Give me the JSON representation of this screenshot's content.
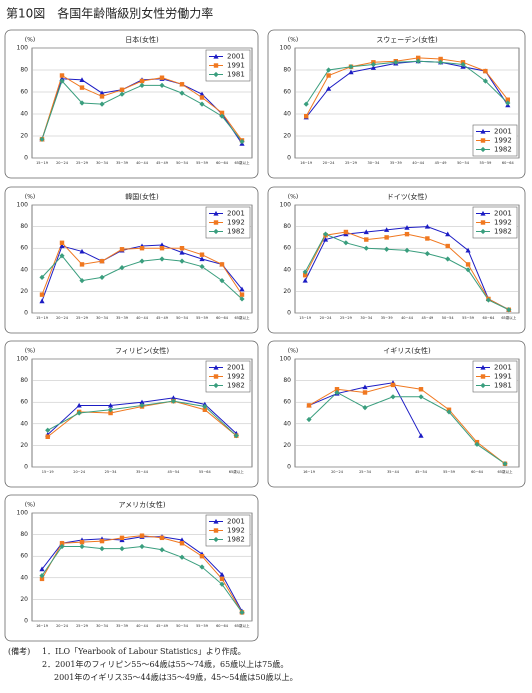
{
  "title": "第10図　各国年齢階級別女性労働力率",
  "chart_data": [
    {
      "type": "line",
      "title": "日本(女性)",
      "ylabel": "(%)",
      "legend": "upper right",
      "categories": [
        "15~19",
        "20~24",
        "25~29",
        "30~34",
        "35~39",
        "40~44",
        "45~49",
        "50~54",
        "55~59",
        "60~64",
        "65歳以上"
      ],
      "ylim": [
        0,
        100
      ],
      "yticks": [
        0,
        20,
        40,
        60,
        80,
        100
      ],
      "grid": true,
      "series": [
        {
          "name": "2001",
          "color": "#1c1cc4",
          "marker": "triangle",
          "values": [
            17,
            72,
            71,
            59,
            62,
            71,
            72,
            67,
            58,
            40,
            13
          ]
        },
        {
          "name": "1991",
          "color": "#f07820",
          "marker": "square",
          "values": [
            17,
            75,
            64,
            56,
            62,
            70,
            73,
            67,
            55,
            41,
            16
          ]
        },
        {
          "name": "1981",
          "color": "#3a9e7e",
          "marker": "diamond",
          "values": [
            17,
            70,
            50,
            49,
            58,
            66,
            66,
            59,
            49,
            38,
            15
          ]
        }
      ]
    },
    {
      "type": "line",
      "title": "スウェーデン(女性)",
      "ylabel": "(%)",
      "legend": "lower right",
      "categories": [
        "16~19",
        "20~24",
        "25~29",
        "30~34",
        "35~39",
        "40~44",
        "45~49",
        "50~54",
        "55~59",
        "60~64"
      ],
      "ylim": [
        0,
        100
      ],
      "yticks": [
        0,
        20,
        40,
        60,
        80,
        100
      ],
      "grid": true,
      "series": [
        {
          "name": "2001",
          "color": "#1c1cc4",
          "marker": "triangle",
          "values": [
            37,
            63,
            78,
            82,
            86,
            88,
            87,
            83,
            79,
            48
          ]
        },
        {
          "name": "1992",
          "color": "#f07820",
          "marker": "square",
          "values": [
            38,
            75,
            83,
            87,
            88,
            91,
            90,
            87,
            79,
            53
          ]
        },
        {
          "name": "1982",
          "color": "#3a9e7e",
          "marker": "diamond",
          "values": [
            49,
            80,
            83,
            85,
            87,
            88,
            87,
            85,
            70,
            50
          ]
        }
      ]
    },
    {
      "type": "line",
      "title": "韓国(女性)",
      "ylabel": "(%)",
      "legend": "upper right",
      "categories": [
        "15~19",
        "20~24",
        "25~29",
        "30~34",
        "35~39",
        "40~44",
        "45~49",
        "50~54",
        "55~59",
        "60~64",
        "65歳以上"
      ],
      "ylim": [
        0,
        100
      ],
      "yticks": [
        0,
        20,
        40,
        60,
        80,
        100
      ],
      "grid": true,
      "series": [
        {
          "name": "2001",
          "color": "#1c1cc4",
          "marker": "triangle",
          "values": [
            11,
            62,
            57,
            48,
            58,
            62,
            63,
            56,
            50,
            45,
            22
          ]
        },
        {
          "name": "1992",
          "color": "#f07820",
          "marker": "square",
          "values": [
            17,
            65,
            45,
            48,
            59,
            60,
            60,
            60,
            54,
            45,
            17
          ]
        },
        {
          "name": "1982",
          "color": "#3a9e7e",
          "marker": "diamond",
          "values": [
            33,
            53,
            30,
            33,
            42,
            48,
            50,
            48,
            43,
            30,
            13
          ]
        }
      ]
    },
    {
      "type": "line",
      "title": "ドイツ(女性)",
      "ylabel": "(%)",
      "legend": "upper right",
      "categories": [
        "15~19",
        "20~24",
        "25~29",
        "30~34",
        "35~39",
        "40~44",
        "45~49",
        "50~54",
        "55~59",
        "60~64",
        "65歳以上"
      ],
      "ylim": [
        0,
        100
      ],
      "yticks": [
        0,
        20,
        40,
        60,
        80,
        100
      ],
      "grid": true,
      "series": [
        {
          "name": "2001",
          "color": "#1c1cc4",
          "marker": "triangle",
          "values": [
            30,
            68,
            73,
            75,
            77,
            79,
            80,
            73,
            58,
            13,
            3
          ]
        },
        {
          "name": "1992",
          "color": "#f07820",
          "marker": "square",
          "values": [
            35,
            72,
            75,
            68,
            70,
            73,
            69,
            62,
            45,
            13,
            3
          ]
        },
        {
          "name": "1982",
          "color": "#3a9e7e",
          "marker": "diamond",
          "values": [
            38,
            73,
            65,
            60,
            59,
            58,
            55,
            50,
            40,
            12,
            3
          ]
        }
      ]
    },
    {
      "type": "line",
      "title": "フィリピン(女性)",
      "ylabel": "(%)",
      "legend": "upper right",
      "categories": [
        "15~19",
        "20~24",
        "25~34",
        "35~44",
        "45~54",
        "55~64",
        "65歳以上"
      ],
      "ylim": [
        0,
        100
      ],
      "yticks": [
        0,
        20,
        40,
        60,
        80,
        100
      ],
      "grid": true,
      "series": [
        {
          "name": "2001",
          "color": "#1c1cc4",
          "marker": "triangle",
          "values": [
            30,
            57,
            57,
            60,
            64,
            58,
            31
          ]
        },
        {
          "name": "1992",
          "color": "#f07820",
          "marker": "square",
          "values": [
            28,
            51,
            50,
            56,
            61,
            53,
            29
          ]
        },
        {
          "name": "1982",
          "color": "#3a9e7e",
          "marker": "diamond",
          "values": [
            34,
            50,
            53,
            57,
            61,
            56,
            29
          ]
        }
      ]
    },
    {
      "type": "line",
      "title": "イギリス(女性)",
      "ylabel": "(%)",
      "legend": "upper right",
      "categories": [
        "16~19",
        "20~24",
        "25~34",
        "35~44",
        "45~54",
        "55~59",
        "60~64",
        "65歳以上"
      ],
      "ylim": [
        0,
        100
      ],
      "yticks": [
        0,
        20,
        40,
        60,
        80,
        100
      ],
      "grid": true,
      "series": [
        {
          "name": "2001",
          "color": "#1c1cc4",
          "marker": "triangle",
          "values": [
            57,
            68,
            74,
            78,
            29,
            null,
            null,
            null
          ]
        },
        {
          "name": "1991",
          "color": "#f07820",
          "marker": "square",
          "values": [
            57,
            72,
            69,
            76,
            72,
            53,
            23,
            3
          ]
        },
        {
          "name": "1981",
          "color": "#3a9e7e",
          "marker": "diamond",
          "values": [
            44,
            69,
            55,
            65,
            65,
            51,
            21,
            3
          ]
        }
      ]
    },
    {
      "type": "line",
      "title": "アメリカ(女性)",
      "ylabel": "(%)",
      "legend": "upper right",
      "categories": [
        "16~19",
        "20~24",
        "25~29",
        "30~34",
        "35~39",
        "40~44",
        "45~49",
        "50~54",
        "55~59",
        "60~64",
        "65歳以上"
      ],
      "ylim": [
        0,
        100
      ],
      "yticks": [
        0,
        20,
        40,
        60,
        80,
        100
      ],
      "grid": true,
      "series": [
        {
          "name": "2001",
          "color": "#1c1cc4",
          "marker": "triangle",
          "values": [
            48,
            72,
            75,
            76,
            75,
            78,
            78,
            75,
            62,
            43,
            9
          ]
        },
        {
          "name": "1992",
          "color": "#f07820",
          "marker": "square",
          "values": [
            39,
            72,
            73,
            74,
            77,
            79,
            77,
            72,
            60,
            39,
            8
          ]
        },
        {
          "name": "1982",
          "color": "#3a9e7e",
          "marker": "diamond",
          "values": [
            42,
            69,
            69,
            67,
            67,
            69,
            66,
            59,
            50,
            34,
            8
          ]
        }
      ]
    }
  ],
  "notes": {
    "label": "(備考)",
    "lines": [
      "1．ILO「Yearbook of Labour Statistics」より作成。",
      "2．2001年のフィリピン55～64歳は55～74歳，65歳以上は75歳。",
      "2001年のイギリス35～44歳は35～49歳，45～54歳は50歳以上。"
    ]
  }
}
